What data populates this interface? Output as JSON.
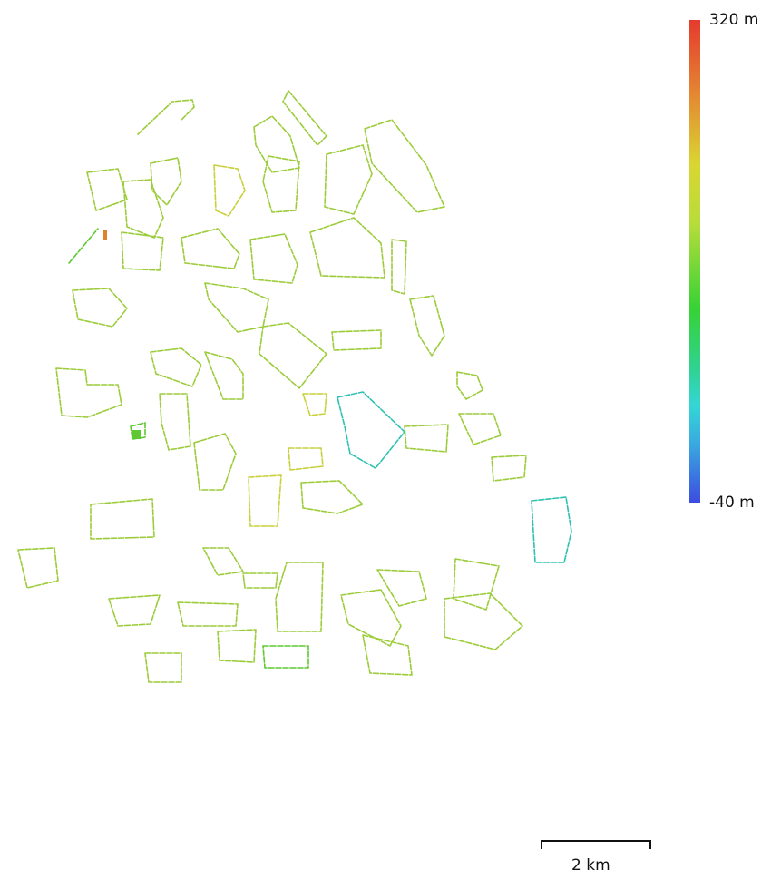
{
  "legend": {
    "max_label": "320 m",
    "min_label": "-40 m",
    "colors": [
      "#e53a2e",
      "#e48a32",
      "#d9d632",
      "#b8dc3a",
      "#36d236",
      "#30d28f",
      "#33d6d6",
      "#3aa8e0",
      "#3c4ce0"
    ]
  },
  "scale": {
    "label": "2 km"
  },
  "footprint_colors": {
    "main": "#9ccc3a",
    "yellowish": "#c8d03c",
    "green": "#5ec832",
    "cyan": "#2ec0b0",
    "orange": "#e0822a"
  }
}
